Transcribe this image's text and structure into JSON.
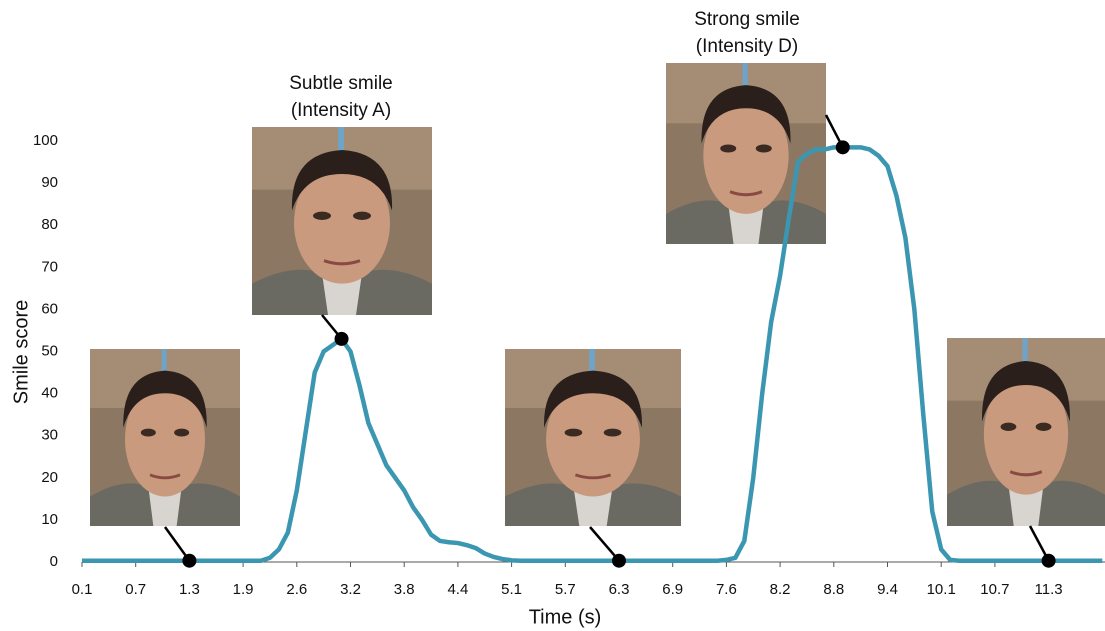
{
  "chart_data": {
    "type": "line",
    "x_label": "Time (s)",
    "y_label": "Smile score",
    "ylim": [
      0,
      100
    ],
    "yticks": [
      0,
      10,
      20,
      30,
      40,
      50,
      60,
      70,
      80,
      90,
      100
    ],
    "annotations": [
      {
        "lines": [
          "Subtle smile",
          "(Intensity A)"
        ]
      },
      {
        "lines": [
          "Strong smile",
          "(Intensity D)"
        ]
      }
    ],
    "categories": [
      "0.1",
      null,
      null,
      null,
      null,
      null,
      "0.7",
      null,
      null,
      null,
      null,
      null,
      "1.3",
      null,
      null,
      null,
      null,
      null,
      "1.9",
      null,
      null,
      null,
      null,
      null,
      "2.6",
      null,
      null,
      null,
      null,
      null,
      "3.2",
      null,
      null,
      null,
      null,
      null,
      "3.8",
      null,
      null,
      null,
      null,
      null,
      "4.4",
      null,
      null,
      null,
      null,
      null,
      "5.1",
      null,
      null,
      null,
      null,
      null,
      "5.7",
      null,
      null,
      null,
      null,
      null,
      "6.3",
      null,
      null,
      null,
      null,
      null,
      "6.9",
      null,
      null,
      null,
      null,
      null,
      "7.6",
      null,
      null,
      null,
      null,
      null,
      "8.2",
      null,
      null,
      null,
      null,
      null,
      "8.8",
      null,
      null,
      null,
      null,
      null,
      "9.4",
      null,
      null,
      null,
      null,
      null,
      "10.1",
      null,
      null,
      null,
      null,
      null,
      "10.7",
      null,
      null,
      null,
      null,
      null,
      "11.3",
      null,
      null,
      null,
      null,
      null,
      null
    ],
    "series": [
      {
        "name": "Smile score",
        "color": "#3b97b1",
        "values": [
          0.3,
          0.3,
          0.3,
          0.3,
          0.3,
          0.3,
          0.3,
          0.3,
          0.3,
          0.3,
          0.3,
          0.3,
          0.3,
          0.3,
          0.3,
          0.3,
          0.3,
          0.3,
          0.3,
          0.3,
          0.3,
          1,
          3,
          7,
          17,
          31,
          45,
          50,
          51.5,
          53,
          50,
          42,
          33,
          28,
          23,
          20,
          17,
          13,
          10,
          6.5,
          5,
          4.7,
          4.5,
          4,
          3.3,
          2,
          1.2,
          0.7,
          0.4,
          0.3,
          0.3,
          0.3,
          0.3,
          0.3,
          0.3,
          0.3,
          0.3,
          0.3,
          0.3,
          0.3,
          0.3,
          0.3,
          0.3,
          0.3,
          0.3,
          0.3,
          0.3,
          0.3,
          0.3,
          0.3,
          0.3,
          0.3,
          0.5,
          1,
          5,
          20,
          40,
          57,
          68,
          82,
          95,
          97,
          98,
          98,
          98.5,
          98.5,
          98.5,
          98.5,
          98,
          96.5,
          94,
          87,
          77,
          60,
          35,
          12,
          3,
          0.5,
          0.3,
          0.3,
          0.3,
          0.3,
          0.3,
          0.3,
          0.3,
          0.3,
          0.3,
          0.3,
          0.3,
          0.3,
          0.3,
          0.3,
          0.3,
          0.3,
          0.3
        ]
      }
    ]
  }
}
